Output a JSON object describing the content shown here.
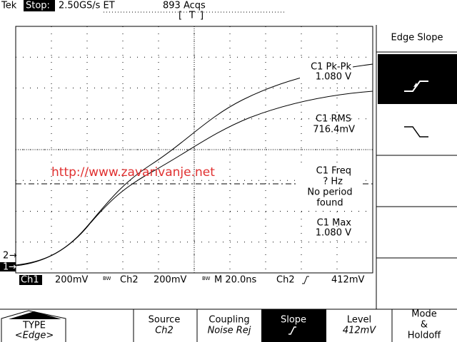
{
  "header": {
    "brand": "Tek",
    "state": "Stop:",
    "rate": "2.50GS/s ET",
    "acqs": "893 Acqs",
    "trigger_marker": "T"
  },
  "channel_markers": [
    "2",
    "1"
  ],
  "watermark": "http://www.zavarivanje.net",
  "measurements": [
    {
      "label": "C1 Pk-Pk",
      "value": "1.080 V"
    },
    {
      "label": "C1 RMS",
      "value": "716.4mV"
    },
    {
      "label": "C1 Freq",
      "value": "? Hz",
      "message": [
        "No period",
        "found"
      ]
    },
    {
      "label": "C1 Max",
      "value": "1.080 V"
    }
  ],
  "status": {
    "ch1": "Ch1",
    "ch1_scale": "200mV",
    "ch2": "Ch2",
    "ch2_scale": "200mV",
    "timebase": "M 20.0ns",
    "trigger_source": "Ch2",
    "trigger_level": "412mV"
  },
  "side_menu": {
    "title": "Edge Slope"
  },
  "bottom_menu": {
    "type": {
      "label": "TYPE",
      "value": "<Edge>"
    },
    "source": {
      "label": "Source",
      "value": "Ch2"
    },
    "coupling": {
      "label": "Coupling",
      "value": "Noise Rej"
    },
    "slope": {
      "label": "Slope"
    },
    "level": {
      "label": "Level",
      "value": "412mV"
    },
    "mode": {
      "lines": [
        "Mode",
        "&",
        "Holdoff"
      ]
    }
  }
}
